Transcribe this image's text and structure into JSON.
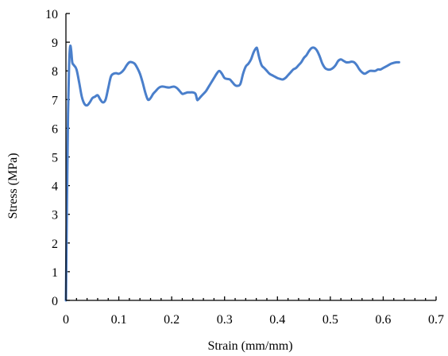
{
  "chart_data": {
    "type": "line",
    "title": "",
    "xlabel": "Strain (mm/mm)",
    "ylabel": "Stress (MPa)",
    "xlim": [
      0,
      0.7
    ],
    "ylim": [
      0,
      10
    ],
    "xticks": [
      "0",
      "0.1",
      "0.2",
      "0.3",
      "0.4",
      "0.5",
      "0.6",
      "0.7"
    ],
    "yticks": [
      "0",
      "1",
      "2",
      "3",
      "4",
      "5",
      "6",
      "7",
      "8",
      "9",
      "10"
    ],
    "grid": false,
    "legend": "none",
    "series": [
      {
        "color": "#4a7fcb",
        "x": [
          0,
          0.002,
          0.004,
          0.006,
          0.008,
          0.01,
          0.012,
          0.015,
          0.02,
          0.025,
          0.03,
          0.035,
          0.04,
          0.045,
          0.05,
          0.055,
          0.06,
          0.065,
          0.07,
          0.075,
          0.08,
          0.085,
          0.09,
          0.095,
          0.1,
          0.105,
          0.11,
          0.115,
          0.12,
          0.125,
          0.13,
          0.135,
          0.14,
          0.145,
          0.15,
          0.155,
          0.16,
          0.165,
          0.17,
          0.175,
          0.18,
          0.185,
          0.19,
          0.195,
          0.2,
          0.205,
          0.21,
          0.215,
          0.22,
          0.225,
          0.23,
          0.235,
          0.24,
          0.245,
          0.248,
          0.25,
          0.255,
          0.26,
          0.265,
          0.27,
          0.275,
          0.28,
          0.285,
          0.29,
          0.295,
          0.3,
          0.305,
          0.31,
          0.315,
          0.32,
          0.325,
          0.33,
          0.335,
          0.34,
          0.345,
          0.35,
          0.355,
          0.36,
          0.362,
          0.365,
          0.37,
          0.375,
          0.38,
          0.385,
          0.39,
          0.395,
          0.4,
          0.405,
          0.41,
          0.415,
          0.42,
          0.425,
          0.43,
          0.435,
          0.44,
          0.445,
          0.45,
          0.455,
          0.46,
          0.465,
          0.47,
          0.475,
          0.48,
          0.485,
          0.49,
          0.495,
          0.5,
          0.505,
          0.51,
          0.515,
          0.52,
          0.525,
          0.53,
          0.535,
          0.54,
          0.545,
          0.55,
          0.555,
          0.56,
          0.565,
          0.57,
          0.575,
          0.58,
          0.585,
          0.59,
          0.595,
          0.6,
          0.605,
          0.61,
          0.615,
          0.62,
          0.625,
          0.63
        ],
        "y": [
          0,
          3.5,
          6.5,
          8.2,
          8.85,
          8.7,
          8.3,
          8.2,
          8.05,
          7.6,
          7.1,
          6.85,
          6.8,
          6.9,
          7.05,
          7.1,
          7.15,
          7.0,
          6.9,
          7.0,
          7.4,
          7.8,
          7.9,
          7.92,
          7.9,
          7.95,
          8.05,
          8.2,
          8.3,
          8.3,
          8.25,
          8.1,
          7.9,
          7.6,
          7.25,
          7.0,
          7.05,
          7.2,
          7.3,
          7.4,
          7.45,
          7.45,
          7.43,
          7.42,
          7.44,
          7.45,
          7.4,
          7.3,
          7.2,
          7.22,
          7.25,
          7.25,
          7.25,
          7.2,
          7.0,
          7.0,
          7.1,
          7.2,
          7.3,
          7.45,
          7.6,
          7.75,
          7.9,
          8.0,
          7.9,
          7.75,
          7.72,
          7.7,
          7.6,
          7.5,
          7.48,
          7.55,
          7.9,
          8.15,
          8.25,
          8.4,
          8.65,
          8.8,
          8.75,
          8.5,
          8.2,
          8.1,
          8.0,
          7.9,
          7.85,
          7.8,
          7.75,
          7.72,
          7.7,
          7.75,
          7.85,
          7.95,
          8.05,
          8.1,
          8.2,
          8.3,
          8.45,
          8.55,
          8.7,
          8.8,
          8.8,
          8.7,
          8.5,
          8.25,
          8.1,
          8.05,
          8.05,
          8.1,
          8.2,
          8.35,
          8.4,
          8.35,
          8.3,
          8.3,
          8.32,
          8.3,
          8.2,
          8.05,
          7.95,
          7.9,
          7.95,
          8.0,
          8.0,
          8.0,
          8.05,
          8.05,
          8.1,
          8.15,
          8.2,
          8.25,
          8.28,
          8.3,
          8.3
        ]
      }
    ]
  }
}
